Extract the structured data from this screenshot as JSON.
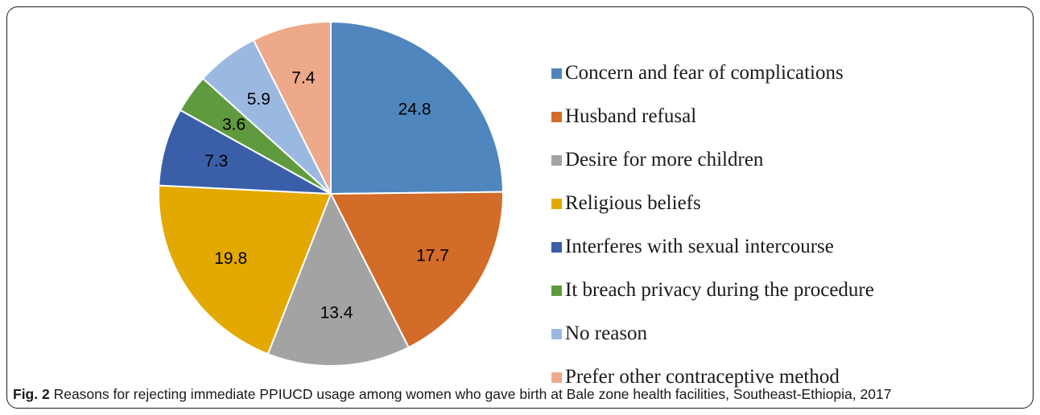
{
  "chart_data": {
    "type": "pie",
    "categories": [
      "Concern and fear of complications",
      "Husband refusal",
      "Desire for more children",
      "Religious beliefs",
      "Interferes with sexual intercourse",
      "It breach privacy during the procedure",
      "No reason",
      "Prefer other contraceptive method"
    ],
    "values": [
      24.8,
      17.7,
      13.4,
      19.8,
      7.3,
      3.6,
      5.9,
      7.4
    ],
    "data_labels": [
      "24.8",
      "17.7",
      "13.4",
      "19.8",
      "7.3",
      "3.6",
      "5.9",
      "7.4"
    ],
    "colors": [
      "#4e86bd",
      "#d36b29",
      "#a3a3a3",
      "#e3a900",
      "#3a5ea8",
      "#5f9b3e",
      "#9bb9e0",
      "#eea88a"
    ],
    "legend_position": "right"
  },
  "caption": {
    "label": "Fig. 2",
    "text": "Reasons for rejecting immediate PPIUCD usage among women who gave birth at Bale zone health facilities, Southeast-Ethiopia, 2017"
  }
}
